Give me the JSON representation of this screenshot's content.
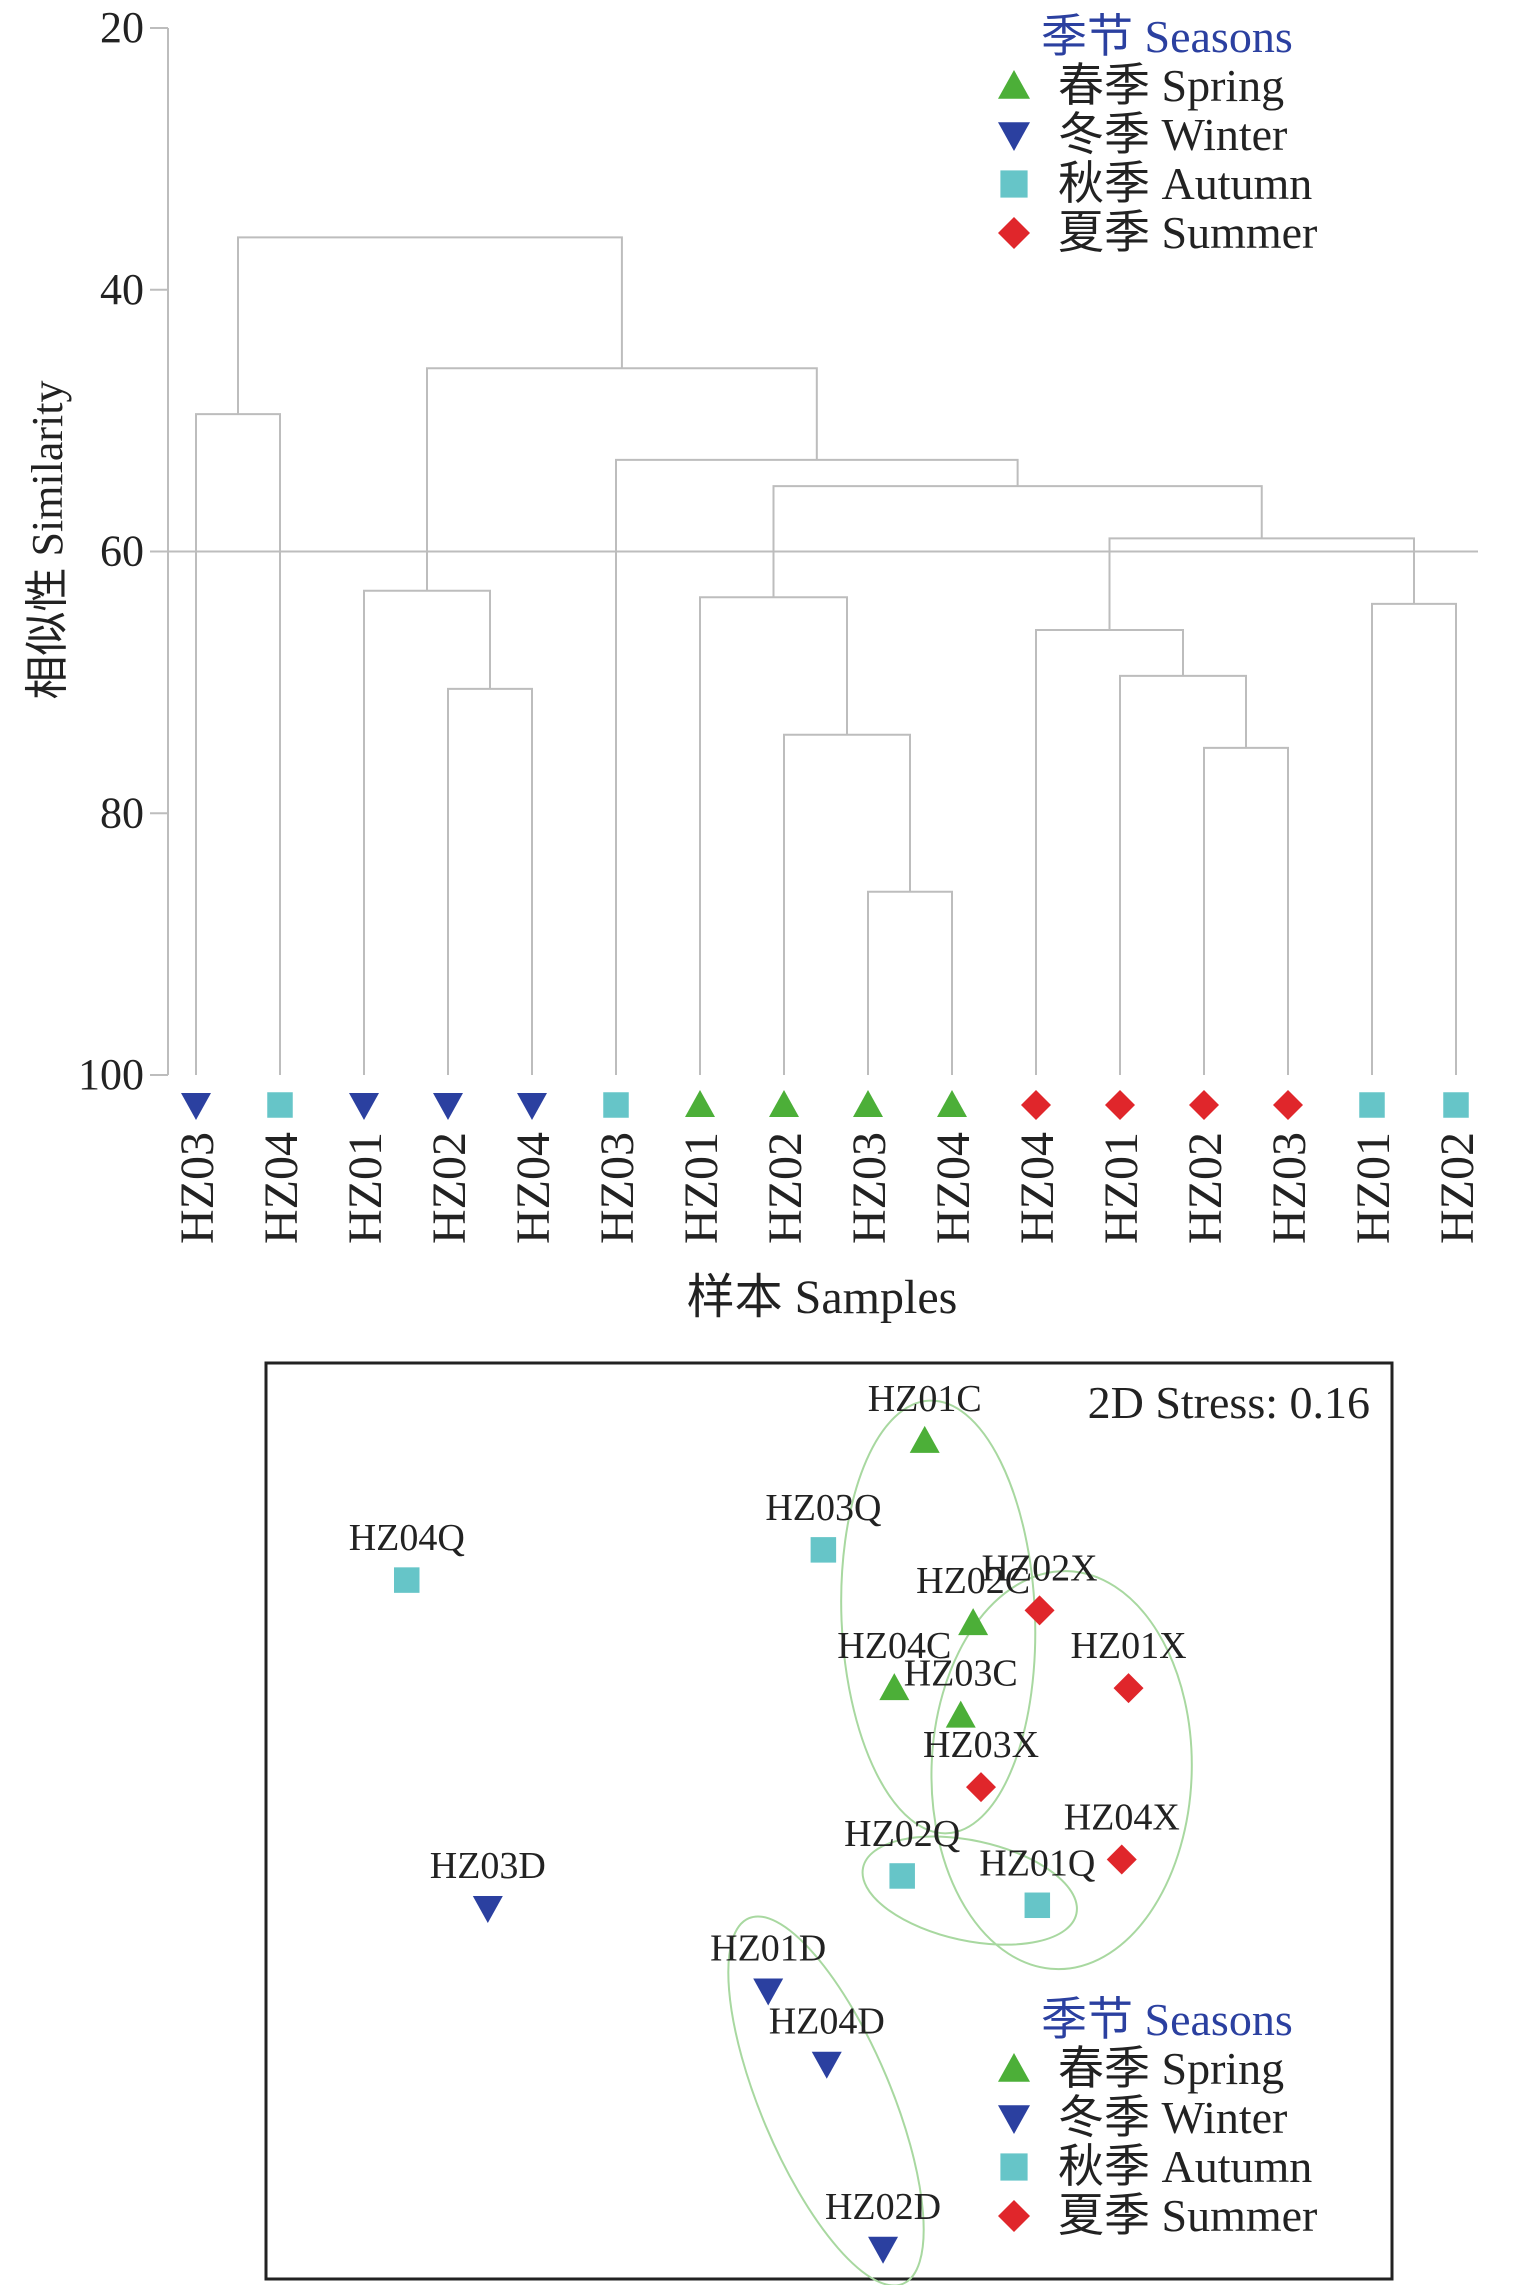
{
  "chart_data": [
    {
      "type": "dendrogram",
      "ylabel": "相似性 Similarity",
      "xlabel": "样本 Samples",
      "ylim": [
        20,
        100
      ],
      "y_ticks": [
        20,
        40,
        60,
        80,
        100
      ],
      "reference_line": 60,
      "legend": {
        "placement": "top-right",
        "title": "季节 Seasons",
        "entries": [
          {
            "label": "春季 Spring",
            "marker": "triangle-up",
            "color": "#4CAF38"
          },
          {
            "label": "冬季 Winter",
            "marker": "triangle-down",
            "color": "#2B40A0"
          },
          {
            "label": "秋季 Autumn",
            "marker": "square",
            "color": "#66C5C8"
          },
          {
            "label": "夏季 Summer",
            "marker": "diamond",
            "color": "#E0262B"
          }
        ]
      },
      "leaves": [
        {
          "label": "HZ03",
          "season": "winter"
        },
        {
          "label": "HZ04",
          "season": "autumn"
        },
        {
          "label": "HZ01",
          "season": "winter"
        },
        {
          "label": "HZ02",
          "season": "winter"
        },
        {
          "label": "HZ04",
          "season": "winter"
        },
        {
          "label": "HZ03",
          "season": "autumn"
        },
        {
          "label": "HZ01",
          "season": "spring"
        },
        {
          "label": "HZ02",
          "season": "spring"
        },
        {
          "label": "HZ03",
          "season": "spring"
        },
        {
          "label": "HZ04",
          "season": "spring"
        },
        {
          "label": "HZ04",
          "season": "summer"
        },
        {
          "label": "HZ01",
          "season": "summer"
        },
        {
          "label": "HZ02",
          "season": "summer"
        },
        {
          "label": "HZ03",
          "season": "summer"
        },
        {
          "label": "HZ01",
          "season": "autumn"
        },
        {
          "label": "HZ02",
          "season": "autumn"
        }
      ],
      "merges": [
        {
          "left": 8,
          "right": 9,
          "similarity": 86
        },
        {
          "left": 12,
          "right": 13,
          "similarity": 75
        },
        {
          "left": 7,
          "right": "m0",
          "similarity": 74
        },
        {
          "left": 3,
          "right": 4,
          "similarity": 70.5
        },
        {
          "left": 11,
          "right": "m1",
          "similarity": 69.5
        },
        {
          "left": 10,
          "right": "m4",
          "similarity": 66
        },
        {
          "left": 14,
          "right": 15,
          "similarity": 64
        },
        {
          "left": 6,
          "right": "m2",
          "similarity": 63.5
        },
        {
          "left": 2,
          "right": "m3",
          "similarity": 63
        },
        {
          "left": "m5",
          "right": "m6",
          "similarity": 59
        },
        {
          "left": "m7",
          "right": "m9",
          "similarity": 55
        },
        {
          "left": 5,
          "right": "m10",
          "similarity": 53
        },
        {
          "left": 0,
          "right": 1,
          "similarity": 49.5
        },
        {
          "left": "m8",
          "right": "m11",
          "similarity": 46
        },
        {
          "left": "m12",
          "right": "m13",
          "similarity": 36
        }
      ]
    },
    {
      "type": "scatter",
      "stress_label": "2D Stress: 0.16",
      "points": [
        {
          "label": "HZ01C",
          "season": "spring",
          "x": 0.585,
          "y": 0.915
        },
        {
          "label": "HZ02C",
          "season": "spring",
          "x": 0.628,
          "y": 0.716
        },
        {
          "label": "HZ04C",
          "season": "spring",
          "x": 0.558,
          "y": 0.645
        },
        {
          "label": "HZ03C",
          "season": "spring",
          "x": 0.617,
          "y": 0.615
        },
        {
          "label": "HZ02X",
          "season": "summer",
          "x": 0.687,
          "y": 0.73
        },
        {
          "label": "HZ01X",
          "season": "summer",
          "x": 0.766,
          "y": 0.645
        },
        {
          "label": "HZ03X",
          "season": "summer",
          "x": 0.635,
          "y": 0.537
        },
        {
          "label": "HZ04X",
          "season": "summer",
          "x": 0.76,
          "y": 0.458
        },
        {
          "label": "HZ04Q",
          "season": "autumn",
          "x": 0.125,
          "y": 0.763
        },
        {
          "label": "HZ03Q",
          "season": "autumn",
          "x": 0.495,
          "y": 0.796
        },
        {
          "label": "HZ02Q",
          "season": "autumn",
          "x": 0.565,
          "y": 0.44
        },
        {
          "label": "HZ01Q",
          "season": "autumn",
          "x": 0.685,
          "y": 0.408
        },
        {
          "label": "HZ03D",
          "season": "winter",
          "x": 0.197,
          "y": 0.405
        },
        {
          "label": "HZ01D",
          "season": "winter",
          "x": 0.446,
          "y": 0.315
        },
        {
          "label": "HZ04D",
          "season": "winter",
          "x": 0.498,
          "y": 0.235
        },
        {
          "label": "HZ02D",
          "season": "winter",
          "x": 0.548,
          "y": 0.033
        }
      ],
      "groups": [
        {
          "members": [
            "HZ01C",
            "HZ02C",
            "HZ04C",
            "HZ03C"
          ]
        },
        {
          "members": [
            "HZ02X",
            "HZ01X",
            "HZ03X",
            "HZ04X",
            "HZ01Q"
          ]
        },
        {
          "members": [
            "HZ02Q",
            "HZ01Q"
          ]
        },
        {
          "members": [
            "HZ01D",
            "HZ04D",
            "HZ02D"
          ]
        }
      ],
      "legend": {
        "placement": "bottom-right",
        "title": "季节 Seasons",
        "entries": [
          {
            "label": "春季 Spring",
            "marker": "triangle-up",
            "color": "#4CAF38"
          },
          {
            "label": "冬季 Winter",
            "marker": "triangle-down",
            "color": "#2B40A0"
          },
          {
            "label": "秋季 Autumn",
            "marker": "square",
            "color": "#66C5C8"
          },
          {
            "label": "夏季 Summer",
            "marker": "diamond",
            "color": "#E0262B"
          }
        ]
      }
    }
  ],
  "colors": {
    "spring": "#4CAF38",
    "winter": "#2B40A0",
    "autumn": "#66C5C8",
    "summer": "#E0262B",
    "legend_title": "#2B40A0",
    "tree_line": "#BDBDBD",
    "ellipse": "#A8D8A0"
  }
}
